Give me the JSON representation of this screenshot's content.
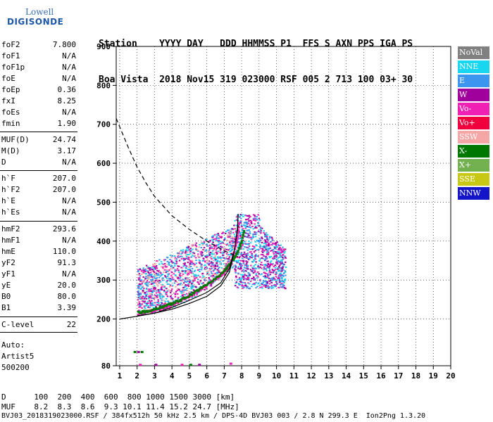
{
  "logo": {
    "line1": "Lowell",
    "line2": "DIGISONDE"
  },
  "header": {
    "row1": "Station    YYYY DAY   DDD HHMMSS P1  FFS S AXN PPS IGA PS",
    "row2": "Boa Vista  2018 Nov15 319 023000 RSF 005 2 713 100 03+ 30"
  },
  "params": [
    {
      "k": "foF2",
      "v": "7.800"
    },
    {
      "k": "foF1",
      "v": "N/A"
    },
    {
      "k": "foF1p",
      "v": "N/A"
    },
    {
      "k": "foE",
      "v": "N/A"
    },
    {
      "k": "foEp",
      "v": "0.36"
    },
    {
      "k": "fxI",
      "v": "8.25"
    },
    {
      "k": "foEs",
      "v": "N/A"
    },
    {
      "k": "fmin",
      "v": "1.90"
    },
    {
      "k": "MUF(D)",
      "v": "24.74"
    },
    {
      "k": "M(D)",
      "v": "3.17"
    },
    {
      "k": "D",
      "v": "N/A"
    },
    {
      "k": "h`F",
      "v": "207.0"
    },
    {
      "k": "h`F2",
      "v": "207.0"
    },
    {
      "k": "h`E",
      "v": "N/A"
    },
    {
      "k": "h`Es",
      "v": "N/A"
    },
    {
      "k": "hmF2",
      "v": "293.6"
    },
    {
      "k": "hmF1",
      "v": "N/A"
    },
    {
      "k": "hmE",
      "v": "110.0"
    },
    {
      "k": "yF2",
      "v": "91.3"
    },
    {
      "k": "yF1",
      "v": "N/A"
    },
    {
      "k": "yE",
      "v": "20.0"
    },
    {
      "k": "B0",
      "v": "80.0"
    },
    {
      "k": "B1",
      "v": "3.39"
    },
    {
      "k": "C-level",
      "v": "22"
    }
  ],
  "autoscale": {
    "l1": "Auto:",
    "l2": "Artist5",
    "l3": "500200"
  },
  "footer": {
    "dline": "D      100  200  400  600  800 1000 1500 3000 [km]",
    "mufline": "MUF    8.2  8.3  8.6  9.3 10.1 11.4 15.2 24.7 [MHz]",
    "fileline": "BVJ03_2018319023000.RSF / 384fx512h 50 kHz 2.5 km / DPS-4D BVJ03 003 / 2.8 N 299.3 E  Ion2Png 1.3.20"
  },
  "legend": [
    {
      "label": "NoVal",
      "color": "#808080"
    },
    {
      "label": "NNE",
      "color": "#19d6f0"
    },
    {
      "label": "E",
      "color": "#3c96f0"
    },
    {
      "label": "W",
      "color": "#a0009c"
    },
    {
      "label": "Vo-",
      "color": "#f020b4"
    },
    {
      "label": "Vo+",
      "color": "#f0003c"
    },
    {
      "label": "SSW",
      "color": "#f5a6a6"
    },
    {
      "label": "X-",
      "color": "#007800"
    },
    {
      "label": "X+",
      "color": "#72b050"
    },
    {
      "label": "SSE",
      "color": "#c8c814"
    },
    {
      "label": "NNW",
      "color": "#1414c8"
    }
  ],
  "chart_data": {
    "type": "scatter",
    "title": "",
    "xlabel": "",
    "ylabel": "",
    "xlim": [
      0.8,
      20
    ],
    "ylim": [
      80,
      900
    ],
    "x_ticks": [
      1,
      2,
      3,
      4,
      5,
      6,
      7,
      8,
      9,
      10,
      11,
      12,
      13,
      14,
      15,
      16,
      17,
      18,
      19,
      20
    ],
    "y_ticks": [
      80,
      200,
      300,
      400,
      500,
      600,
      700,
      800,
      900
    ],
    "grid": "dotted",
    "ordinary_trace": {
      "color": "#f020b4",
      "x": [
        2.0,
        2.5,
        3.0,
        3.5,
        4.0,
        4.5,
        5.0,
        5.5,
        6.0,
        6.5,
        7.0,
        7.3,
        7.5,
        7.7,
        7.8
      ],
      "y": [
        215,
        220,
        225,
        232,
        240,
        250,
        262,
        275,
        290,
        305,
        325,
        345,
        370,
        410,
        450
      ]
    },
    "extraordinary_trace": {
      "color": "#007800",
      "x": [
        2.0,
        2.5,
        3.0,
        3.5,
        4.0,
        4.5,
        5.0,
        5.5,
        6.0,
        6.5,
        7.0,
        7.3,
        7.6,
        7.9,
        8.1
      ],
      "y": [
        218,
        222,
        228,
        235,
        243,
        252,
        264,
        278,
        292,
        308,
        328,
        345,
        365,
        395,
        430
      ]
    },
    "profile_curve": {
      "color": "#000000",
      "x": [
        1.0,
        2.0,
        3.0,
        4.0,
        5.0,
        6.0,
        6.8,
        7.3,
        7.6,
        7.75,
        7.8
      ],
      "y": [
        200,
        207,
        215,
        225,
        240,
        258,
        285,
        320,
        380,
        430,
        470
      ]
    },
    "virtual_height_curve": {
      "color": "#000000",
      "x": [
        2.0,
        3.0,
        4.0,
        5.0,
        6.0,
        6.8,
        7.3,
        7.6,
        7.8
      ],
      "y": [
        208,
        215,
        230,
        248,
        268,
        293,
        330,
        380,
        440
      ]
    },
    "muf_curve": {
      "color": "#000000",
      "style": "dashed",
      "x": [
        0.8,
        1.5,
        2.0,
        2.5,
        3.0,
        4.0,
        5.0,
        6.0,
        7.0,
        7.8
      ],
      "y": [
        715,
        640,
        590,
        550,
        515,
        465,
        430,
        400,
        375,
        360
      ]
    },
    "f_layer_cloud": {
      "colors": [
        "#19d6f0",
        "#3c96f0",
        "#a0009c",
        "#f020b4",
        "#f5a6a6"
      ],
      "x_range": [
        2.0,
        7.5
      ],
      "y_range": [
        240,
        460
      ]
    },
    "spread_cloud": {
      "colors": [
        "#19d6f0",
        "#3c96f0",
        "#a0009c",
        "#f020b4"
      ],
      "x_range": [
        7.5,
        10.5
      ],
      "y_range": [
        280,
        470
      ]
    },
    "low_echoes": {
      "colors": [
        "#007800",
        "#a0009c",
        "#f020b4"
      ],
      "x": [
        1.8,
        2.0,
        2.1,
        2.2,
        3.0,
        4.5,
        5.0,
        5.5,
        7.3
      ],
      "y": [
        118,
        118,
        85,
        118,
        85,
        85,
        85,
        85,
        88
      ]
    }
  }
}
